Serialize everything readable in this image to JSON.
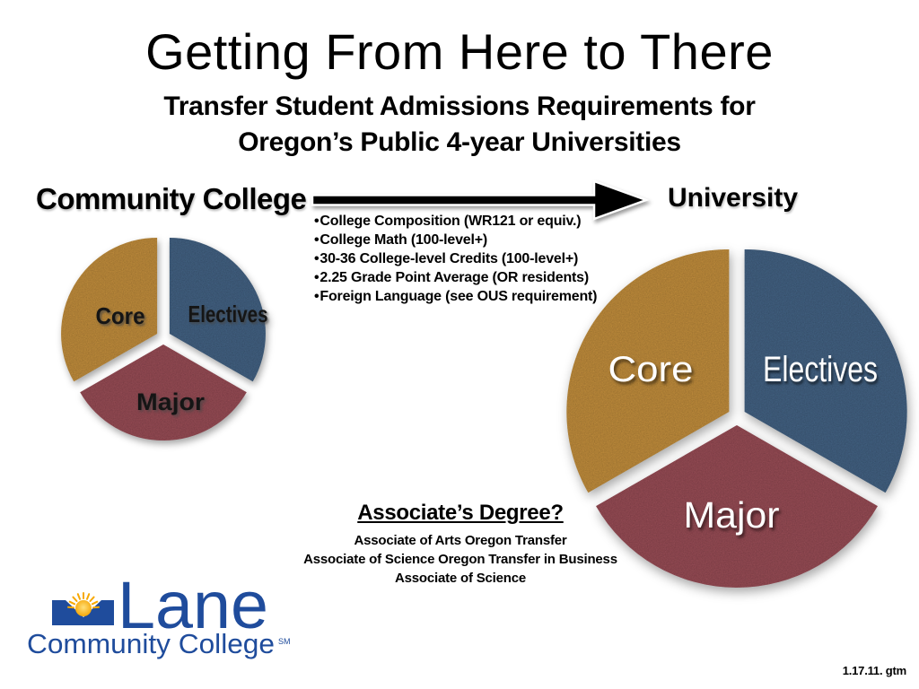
{
  "slide": {
    "title": "Getting From Here to There",
    "subtitle": {
      "line1": "Transfer Student Admissions Requirements for",
      "line2": "Oregon’s Public 4-year Universities"
    },
    "flow": {
      "from_label": "Community College",
      "to_label": "University"
    },
    "requirements": [
      "College Composition (WR121 or equiv.)",
      "College Math (100-level+)",
      "30-36 College-level Credits (100-level+)",
      "2.25 Grade Point Average (OR residents)",
      "Foreign Language (see OUS requirement)"
    ],
    "associates_degree": {
      "heading": "Associate’s Degree?",
      "items": [
        "Associate of Arts Oregon Transfer",
        "Associate of Science Oregon Transfer in Business",
        "Associate of Science"
      ]
    },
    "logo": {
      "line1": "Lane",
      "line2": "Community College",
      "trademark": "SM",
      "brand_blue": "#1F4C9C",
      "sun_yellow": "#F7A800"
    },
    "footer_note": "1.17.11. gtm"
  },
  "chart_data": [
    {
      "id": "community-college-pie",
      "type": "pie",
      "title": "Community College",
      "slices": [
        {
          "label": "Electives",
          "value": 33.3,
          "color": "#48698C"
        },
        {
          "label": "Major",
          "value": 33.4,
          "color": "#A2525C"
        },
        {
          "label": "Core",
          "value": 33.3,
          "color": "#CE9741"
        }
      ],
      "start_angle_deg": 0,
      "clockwise": true,
      "exploded": true,
      "label_color": "#151515",
      "legend": "none"
    },
    {
      "id": "university-pie",
      "type": "pie",
      "title": "University",
      "slices": [
        {
          "label": "Electives",
          "value": 33.3,
          "color": "#48698C"
        },
        {
          "label": "Major",
          "value": 33.4,
          "color": "#A2525C"
        },
        {
          "label": "Core",
          "value": 33.3,
          "color": "#CE9741"
        }
      ],
      "start_angle_deg": 0,
      "clockwise": true,
      "exploded": true,
      "label_color": "#ffffff",
      "legend": "none"
    }
  ]
}
